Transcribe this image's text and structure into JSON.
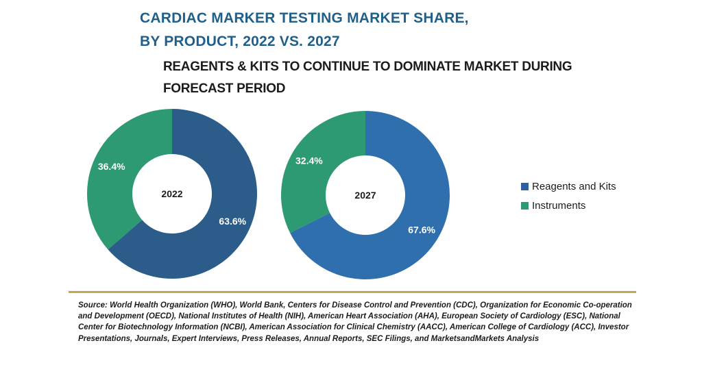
{
  "title_line1": "CARDIAC MARKER TESTING MARKET SHARE,",
  "title_line2": "BY PRODUCT, 2022 VS. 2027",
  "subtitle": "REAGENTS & KITS TO CONTINUE TO DOMINATE MARKET DURING FORECAST PERIOD",
  "source": "Source: World Health Organization (WHO), World Bank, Centers for Disease Control and Prevention (CDC), Organization for Economic Co-operation and Development (OECD), National Institutes of Health (NIH), American Heart Association (AHA), European Society of Cardiology (ESC), National Center for Biotechnology Information (NCBI), American Association for Clinical Chemistry (AACC), American College of Cardiology (ACC), Investor Presentations, Journals, Expert Interviews, Press Releases, Annual Reports, SEC Filings, and MarketsandMarkets Analysis",
  "chart_data": [
    {
      "type": "pie",
      "center_label": "2022",
      "slices": [
        {
          "name": "Reagents and Kits",
          "value": 63.6,
          "label": "63.6%",
          "color": "#2b5c8a"
        },
        {
          "name": "Instruments",
          "value": 36.4,
          "label": "36.4%",
          "color": "#2e9a72"
        }
      ]
    },
    {
      "type": "pie",
      "center_label": "2027",
      "slices": [
        {
          "name": "Reagents and Kits",
          "value": 67.6,
          "label": "67.6%",
          "color": "#2f6fad"
        },
        {
          "name": "Instruments",
          "value": 32.4,
          "label": "32.4%",
          "color": "#2e9a72"
        }
      ]
    }
  ],
  "legend": [
    {
      "label": "Reagents and Kits",
      "color": "#2b5fa0"
    },
    {
      "label": "Instruments",
      "color": "#2e9a72"
    }
  ]
}
